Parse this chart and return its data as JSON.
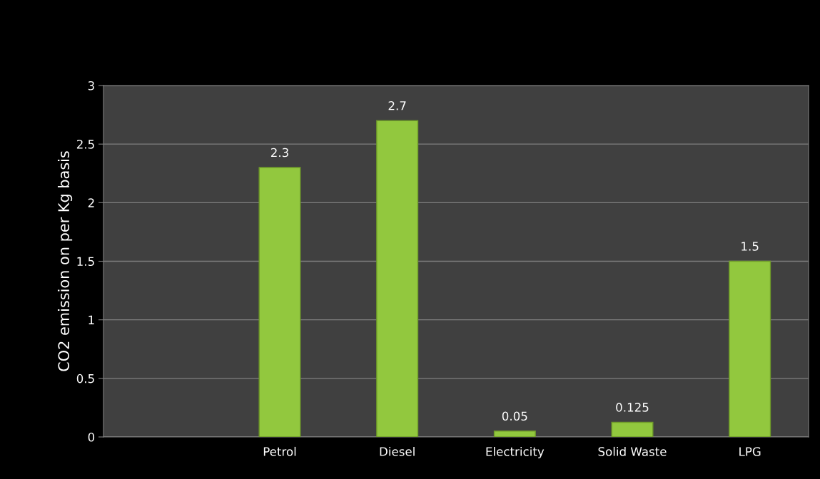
{
  "chart_data": {
    "type": "bar",
    "ylabel": "CO2 emission on per Kg basis",
    "categories": [
      null,
      "Petrol",
      "Diesel",
      "Electricity",
      "Solid Waste",
      "LPG"
    ],
    "values": [
      null,
      2.3,
      2.7,
      0.05,
      0.125,
      1.5
    ],
    "color": "#92c83e",
    "ylim": [
      0,
      3
    ],
    "yticks": [
      0,
      0.5,
      1,
      1.5,
      2,
      2.5,
      3
    ],
    "grid": "y",
    "data_labels": true
  }
}
